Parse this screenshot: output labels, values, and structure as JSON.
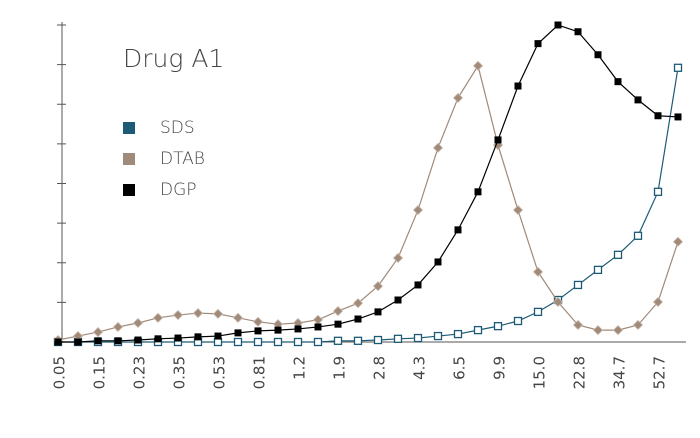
{
  "chart_data": {
    "type": "line",
    "title": "Drug A1",
    "categories": [
      "0.05",
      null,
      "0.15",
      null,
      "0.23",
      null,
      "0.35",
      null,
      "0.53",
      null,
      "0.81",
      null,
      "1.2",
      null,
      "1.9",
      null,
      "2.8",
      null,
      "4.3",
      null,
      "6.5",
      null,
      "9.9",
      null,
      "15.0",
      null,
      "22.8",
      null,
      "34.7",
      null,
      "52.7",
      null
    ],
    "series": [
      {
        "name": "SDS",
        "color": "#1d5a75",
        "values": [
          0,
          0,
          0,
          0,
          0,
          0,
          0,
          0,
          0,
          0,
          0,
          0,
          0,
          0,
          0.03,
          0.03,
          0.05,
          0.08,
          0.1,
          0.15,
          0.2,
          0.3,
          0.4,
          0.53,
          0.76,
          1.06,
          1.44,
          1.82,
          2.2,
          2.68,
          3.79,
          6.92
        ]
      },
      {
        "name": "DTAB",
        "color": "#a08a7a",
        "values": [
          0.05,
          0.15,
          0.25,
          0.38,
          0.48,
          0.61,
          0.68,
          0.73,
          0.71,
          0.61,
          0.51,
          0.45,
          0.48,
          0.56,
          0.78,
          0.98,
          1.41,
          2.12,
          3.33,
          4.9,
          6.16,
          6.97,
          4.97,
          3.33,
          1.77,
          1.01,
          0.43,
          0.3,
          0.3,
          0.43,
          1.01,
          2.53
        ]
      },
      {
        "name": "DGP",
        "color": "#000000",
        "values": [
          0,
          0,
          0.03,
          0.03,
          0.05,
          0.08,
          0.1,
          0.13,
          0.15,
          0.23,
          0.28,
          0.3,
          0.33,
          0.38,
          0.45,
          0.58,
          0.76,
          1.06,
          1.44,
          2.02,
          2.83,
          3.79,
          5.1,
          6.46,
          7.53,
          8,
          7.83,
          7.25,
          6.57,
          6.11,
          5.71,
          5.68
        ]
      }
    ],
    "ylim": [
      0,
      8
    ],
    "yticks": [
      0,
      1,
      2,
      3,
      4,
      5,
      6,
      7,
      8
    ],
    "legend": "upper left"
  }
}
